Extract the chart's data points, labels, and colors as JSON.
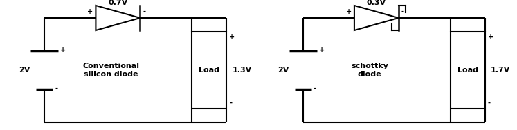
{
  "fig_width": 7.47,
  "fig_height": 1.89,
  "dpi": 100,
  "bg_color": "#ffffff",
  "line_color": "#000000",
  "line_width": 1.5,
  "circuit1": {
    "battery_voltage": "2V",
    "diode_voltage": "0.7V",
    "load_voltage": "1.3V",
    "diode_label": "Conventional\nsilicon diode",
    "load_label": "Load"
  },
  "circuit2": {
    "battery_voltage": "2V",
    "diode_voltage": "0.3V",
    "load_voltage": "1.7V",
    "diode_label": "schottky\ndiode",
    "load_label": "Load"
  },
  "offsets": [
    0.03,
    0.53
  ]
}
